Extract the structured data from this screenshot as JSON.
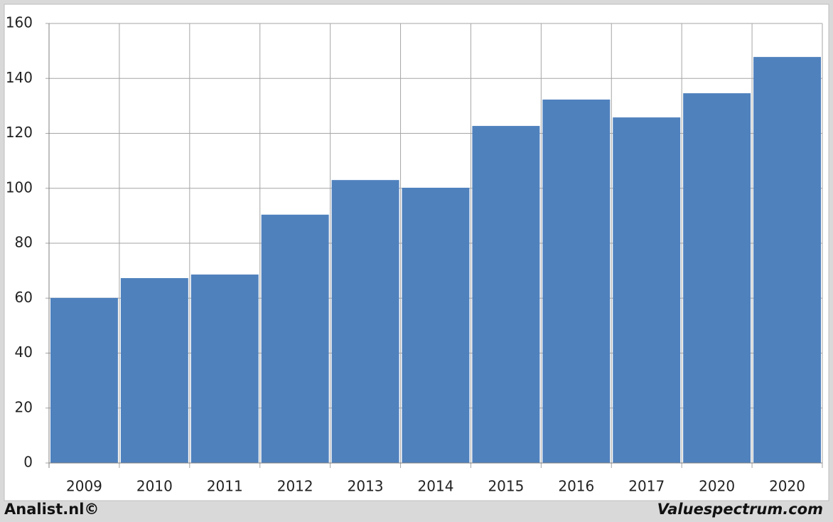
{
  "chart_data": {
    "type": "bar",
    "categories": [
      "2009",
      "2010",
      "2011",
      "2012",
      "2013",
      "2014",
      "2015",
      "2016",
      "2017",
      "2020",
      "2020"
    ],
    "values": [
      60.1,
      67.3,
      68.6,
      90.4,
      103.0,
      100.2,
      122.7,
      132.3,
      125.8,
      134.6,
      147.8
    ],
    "color": "#4f81bd",
    "ylim": [
      0,
      160
    ],
    "yticks": [
      0,
      20,
      40,
      60,
      80,
      100,
      120,
      140,
      160
    ],
    "grid": true,
    "footer_left": "Analist.nl©",
    "footer_right": "Valuespectrum.com"
  }
}
